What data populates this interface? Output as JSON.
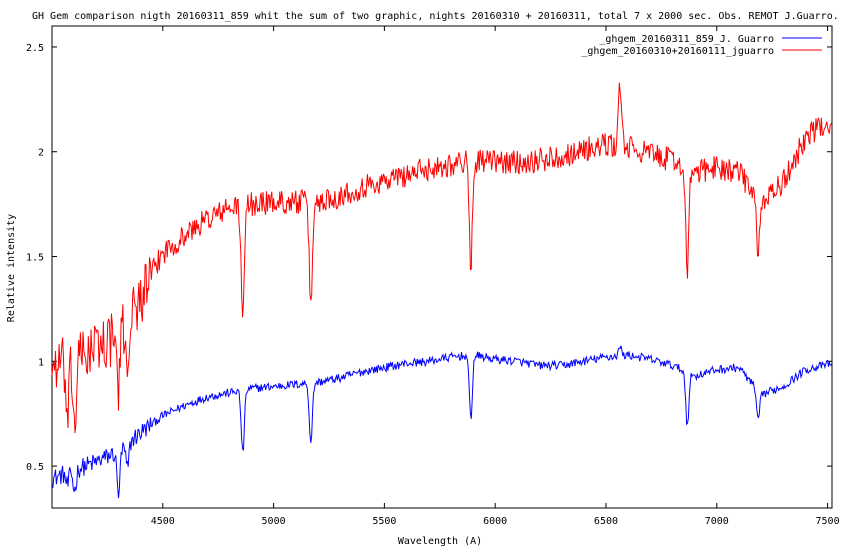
{
  "chart_data": {
    "type": "line",
    "title": "GH Gem comparison nigth 20160311_859 whit the sum of two graphic, nights 20160310 + 20160311, total 7 x 2000 sec.  Obs. REMOT  J.Guarro.",
    "xlabel": "Wavelength (A)",
    "ylabel": "Relative intensity",
    "xlim": [
      4000,
      7520
    ],
    "ylim": [
      0.3,
      2.6
    ],
    "x_ticks": [
      4500,
      5000,
      5500,
      6000,
      6500,
      7000,
      7500
    ],
    "y_ticks": [
      0.5,
      1,
      1.5,
      2,
      2.5
    ],
    "y_tick_labels": [
      "0.5",
      "1",
      "1.5",
      "2",
      "2.5"
    ],
    "grid": false,
    "legend_position": "top-right",
    "series": [
      {
        "name": "_ghgem_20160311_859_J. Guarro",
        "color": "#0000ff",
        "continuum": [
          [
            4000,
            0.44
          ],
          [
            4100,
            0.48
          ],
          [
            4200,
            0.52
          ],
          [
            4300,
            0.57
          ],
          [
            4400,
            0.66
          ],
          [
            4500,
            0.74
          ],
          [
            4600,
            0.79
          ],
          [
            4700,
            0.83
          ],
          [
            4800,
            0.85
          ],
          [
            4900,
            0.87
          ],
          [
            5000,
            0.88
          ],
          [
            5100,
            0.89
          ],
          [
            5200,
            0.9
          ],
          [
            5300,
            0.92
          ],
          [
            5400,
            0.95
          ],
          [
            5500,
            0.97
          ],
          [
            5600,
            0.99
          ],
          [
            5700,
            1.0
          ],
          [
            5800,
            1.02
          ],
          [
            5900,
            1.03
          ],
          [
            6000,
            1.01
          ],
          [
            6100,
            1.0
          ],
          [
            6200,
            0.98
          ],
          [
            6300,
            0.98
          ],
          [
            6400,
            1.0
          ],
          [
            6500,
            1.02
          ],
          [
            6600,
            1.03
          ],
          [
            6700,
            1.01
          ],
          [
            6800,
            0.98
          ],
          [
            6900,
            0.93
          ],
          [
            7000,
            0.96
          ],
          [
            7100,
            0.97
          ],
          [
            7200,
            0.84
          ],
          [
            7300,
            0.88
          ],
          [
            7400,
            0.96
          ],
          [
            7520,
            0.99
          ]
        ],
        "dips": [
          [
            4070,
            0.06
          ],
          [
            4102,
            0.1
          ],
          [
            4300,
            0.2
          ],
          [
            4340,
            0.12
          ],
          [
            4861,
            0.3
          ],
          [
            5168,
            0.28
          ],
          [
            5890,
            0.3
          ],
          [
            6563,
            -0.04
          ],
          [
            6867,
            0.25
          ],
          [
            7186,
            0.14
          ]
        ]
      },
      {
        "name": "_ghgem_20160310+20160111_jguarro",
        "color": "#ff0000",
        "continuum": [
          [
            4000,
            0.98
          ],
          [
            4100,
            1.0
          ],
          [
            4200,
            1.07
          ],
          [
            4300,
            1.12
          ],
          [
            4400,
            1.3
          ],
          [
            4500,
            1.52
          ],
          [
            4600,
            1.6
          ],
          [
            4700,
            1.68
          ],
          [
            4800,
            1.73
          ],
          [
            4900,
            1.75
          ],
          [
            5000,
            1.76
          ],
          [
            5100,
            1.76
          ],
          [
            5200,
            1.76
          ],
          [
            5300,
            1.79
          ],
          [
            5400,
            1.83
          ],
          [
            5500,
            1.86
          ],
          [
            5600,
            1.89
          ],
          [
            5700,
            1.92
          ],
          [
            5800,
            1.94
          ],
          [
            5900,
            1.96
          ],
          [
            6000,
            1.95
          ],
          [
            6100,
            1.95
          ],
          [
            6200,
            1.96
          ],
          [
            6300,
            1.98
          ],
          [
            6400,
            2.01
          ],
          [
            6500,
            2.03
          ],
          [
            6600,
            2.02
          ],
          [
            6700,
            1.99
          ],
          [
            6800,
            1.96
          ],
          [
            6900,
            1.9
          ],
          [
            7000,
            1.93
          ],
          [
            7100,
            1.9
          ],
          [
            7200,
            1.76
          ],
          [
            7300,
            1.85
          ],
          [
            7400,
            2.07
          ],
          [
            7520,
            2.15
          ]
        ],
        "dips": [
          [
            4070,
            0.3
          ],
          [
            4102,
            0.32
          ],
          [
            4300,
            0.25
          ],
          [
            4340,
            0.2
          ],
          [
            4861,
            0.55
          ],
          [
            5168,
            0.5
          ],
          [
            5890,
            0.5
          ],
          [
            6563,
            -0.3
          ],
          [
            6867,
            0.5
          ],
          [
            7186,
            0.3
          ]
        ]
      }
    ]
  }
}
